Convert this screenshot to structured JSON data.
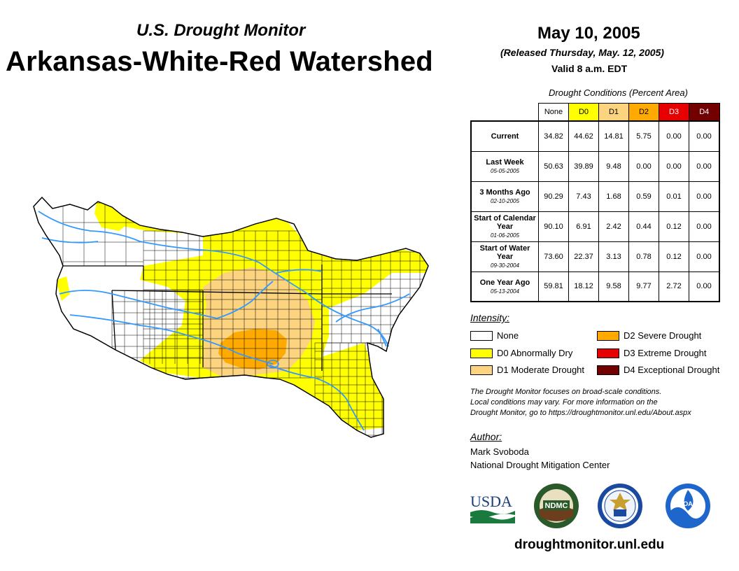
{
  "header": {
    "subtitle": "U.S. Drought Monitor",
    "title": "Arkansas-White-Red Watershed",
    "date": "May 10, 2005",
    "released": "(Released Thursday, May. 12, 2005)",
    "valid": "Valid 8 a.m. EDT"
  },
  "table": {
    "caption": "Drought Conditions (Percent Area)",
    "columns": [
      "None",
      "D0",
      "D1",
      "D2",
      "D3",
      "D4"
    ],
    "column_colors": [
      "#ffffff",
      "#ffff00",
      "#fcd37f",
      "#ffaa00",
      "#e60000",
      "#730000"
    ],
    "column_text_colors": [
      "#000000",
      "#000000",
      "#000000",
      "#000000",
      "#ffffff",
      "#ffffff"
    ],
    "rows": [
      {
        "label": "Current",
        "date": "",
        "values": [
          "34.82",
          "44.62",
          "14.81",
          "5.75",
          "0.00",
          "0.00"
        ]
      },
      {
        "label": "Last Week",
        "date": "05-05-2005",
        "values": [
          "50.63",
          "39.89",
          "9.48",
          "0.00",
          "0.00",
          "0.00"
        ]
      },
      {
        "label": "3 Months Ago",
        "date": "02-10-2005",
        "values": [
          "90.29",
          "7.43",
          "1.68",
          "0.59",
          "0.01",
          "0.00"
        ]
      },
      {
        "label": "Start of Calendar Year",
        "date": "01-06-2005",
        "values": [
          "90.10",
          "6.91",
          "2.42",
          "0.44",
          "0.12",
          "0.00"
        ]
      },
      {
        "label": "Start of Water Year",
        "date": "09-30-2004",
        "values": [
          "73.60",
          "22.37",
          "3.13",
          "0.78",
          "0.12",
          "0.00"
        ]
      },
      {
        "label": "One Year Ago",
        "date": "05-13-2004",
        "values": [
          "59.81",
          "18.12",
          "9.58",
          "9.77",
          "2.72",
          "0.00"
        ]
      }
    ]
  },
  "legend": {
    "title": "Intensity:",
    "items": [
      {
        "label": "None",
        "color": "#ffffff"
      },
      {
        "label": "D0 Abnormally Dry",
        "color": "#ffff00"
      },
      {
        "label": "D1 Moderate Drought",
        "color": "#fcd37f"
      },
      {
        "label": "D2 Severe Drought",
        "color": "#ffaa00"
      },
      {
        "label": "D3 Extreme Drought",
        "color": "#e60000"
      },
      {
        "label": "D4 Exceptional Drought",
        "color": "#730000"
      }
    ]
  },
  "disclaimer": {
    "line1": "The Drought Monitor focuses on broad-scale conditions.",
    "line2": "Local conditions may vary. For more information on the",
    "line3": "Drought Monitor, go to https://droughtmonitor.unl.edu/About.aspx"
  },
  "author": {
    "title": "Author:",
    "name": "Mark Svoboda",
    "org": "National Drought Mitigation Center"
  },
  "logos": {
    "usda": "USDA",
    "ndmc": "NDMC",
    "noaa": "NOAA"
  },
  "footer": {
    "website": "droughtmonitor.unl.edu"
  },
  "map": {
    "colors": {
      "none": "#ffffff",
      "d0": "#ffff00",
      "d1": "#fcd37f",
      "d2": "#ffaa00",
      "river": "#3399ff"
    }
  }
}
